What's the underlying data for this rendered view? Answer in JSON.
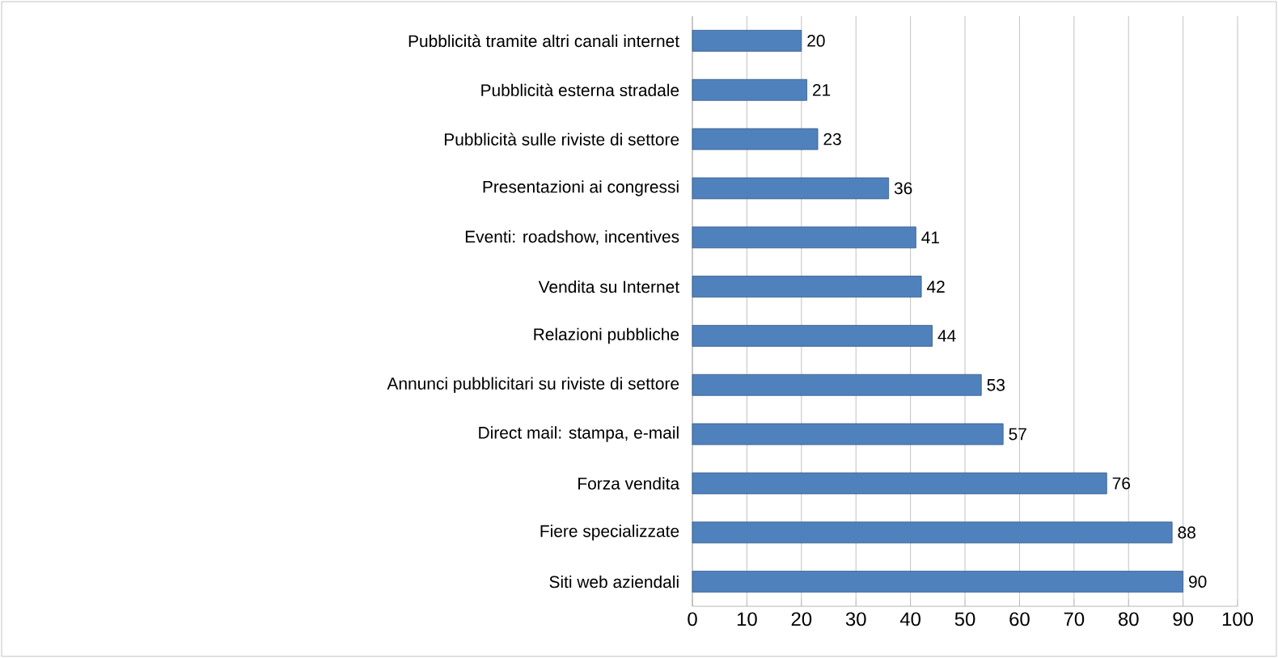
{
  "chart_data": {
    "type": "bar",
    "orientation": "horizontal",
    "categories": [
      "Pubblicità tramite altri canali internet",
      "Pubblicità esterna stradale",
      "Pubblicità sulle riviste di settore",
      "Presentazioni ai congressi",
      "Eventi: roadshow, incentives",
      "Vendita su Internet",
      "Relazioni pubbliche",
      "Annunci pubblicitari su riviste di settore",
      "Direct mail: stampa, e-mail",
      "Forza vendita",
      "Fiere specializzate",
      "Siti web aziendali"
    ],
    "values": [
      20,
      21,
      23,
      36,
      41,
      42,
      44,
      53,
      57,
      76,
      88,
      90
    ],
    "color": "#4f81bd",
    "xlim": [
      0,
      100
    ],
    "xticks": [
      0,
      10,
      20,
      30,
      40,
      50,
      60,
      70,
      80,
      90,
      100
    ],
    "grid": "x",
    "data_labels": true
  }
}
